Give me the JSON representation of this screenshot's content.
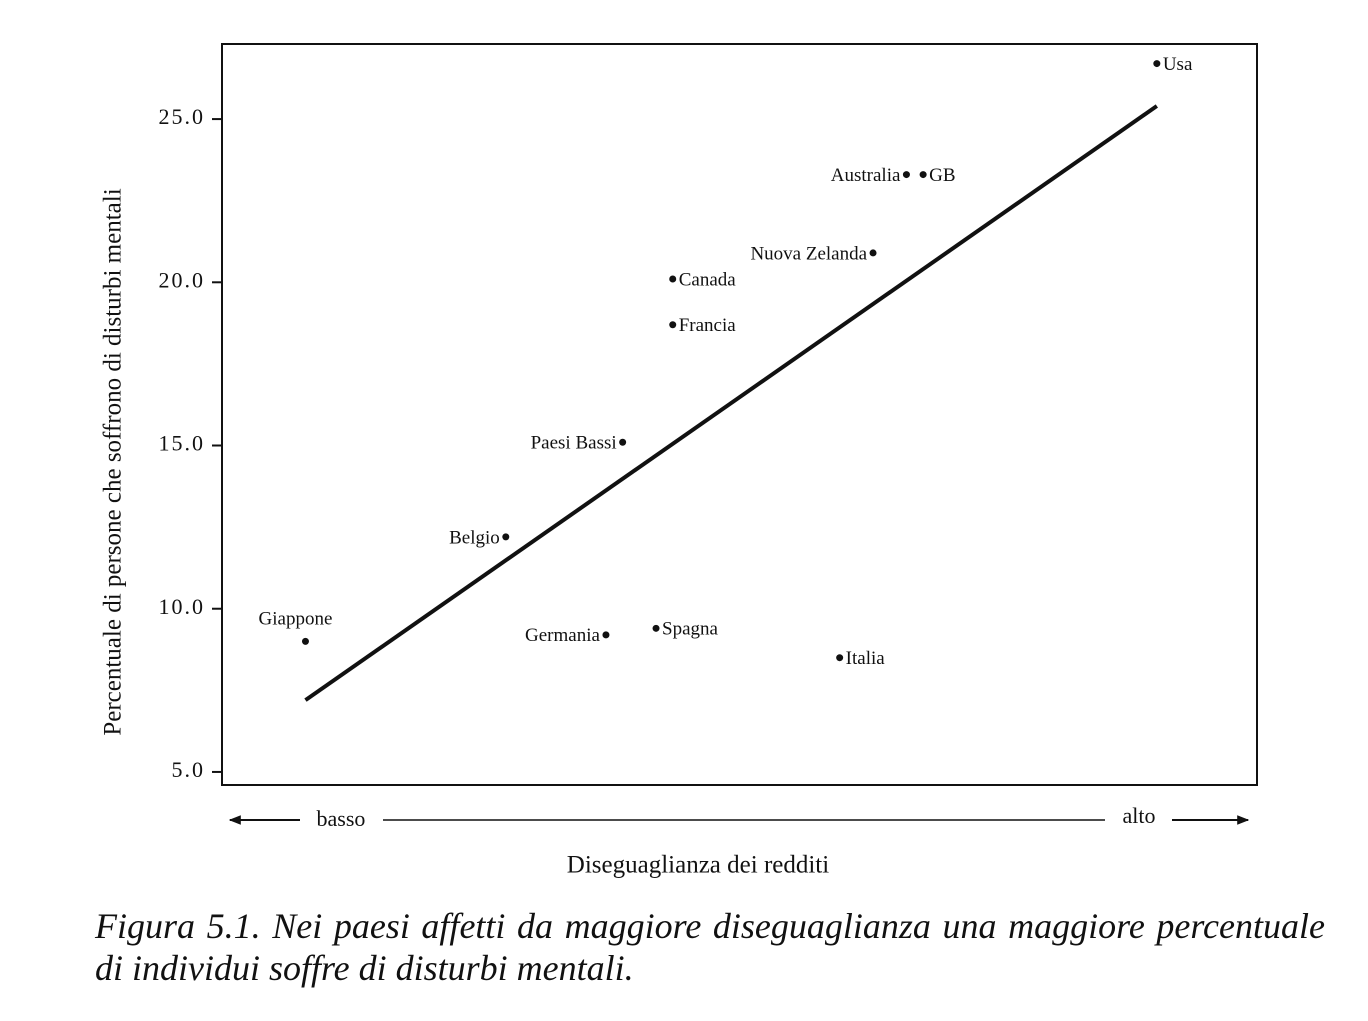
{
  "chart_data": {
    "type": "scatter",
    "y_label": "Percentuale di persone che soffrono di disturbi mentali",
    "x_label": "Diseguaglianza dei redditi",
    "x_low_label": "basso",
    "x_high_label": "alto",
    "caption": "Figura 5.1. Nei paesi affetti da maggiore diseguaglianza una maggiore percentuale di individui soffre di disturbi mentali.",
    "labels": [
      "Giappone",
      "Belgio",
      "Germania",
      "Paesi Bassi",
      "Spagna",
      "Francia",
      "Canada",
      "Italia",
      "Nuova Zelanda",
      "Australia",
      "GB",
      "Usa"
    ],
    "x": [
      3.4,
      4.6,
      5.2,
      5.3,
      5.5,
      5.6,
      5.6,
      6.6,
      6.8,
      7.0,
      7.1,
      8.5
    ],
    "values": [
      9.0,
      12.2,
      9.2,
      15.1,
      9.4,
      18.7,
      20.1,
      8.5,
      20.9,
      23.3,
      23.3,
      26.7
    ],
    "color": "#111111",
    "trendline": {
      "x": [
        3.4,
        8.5
      ],
      "y": [
        7.2,
        25.4
      ]
    },
    "xlim": [
      2.9,
      9.1
    ],
    "ylim": [
      4.6,
      27.3
    ],
    "yticks": [
      {
        "value": 5,
        "label": "5.0"
      },
      {
        "value": 10,
        "label": "10.0"
      },
      {
        "value": 15,
        "label": "15.0"
      },
      {
        "value": 20,
        "label": "20.0"
      },
      {
        "value": 25,
        "label": "25.0"
      }
    ],
    "grid": false
  }
}
